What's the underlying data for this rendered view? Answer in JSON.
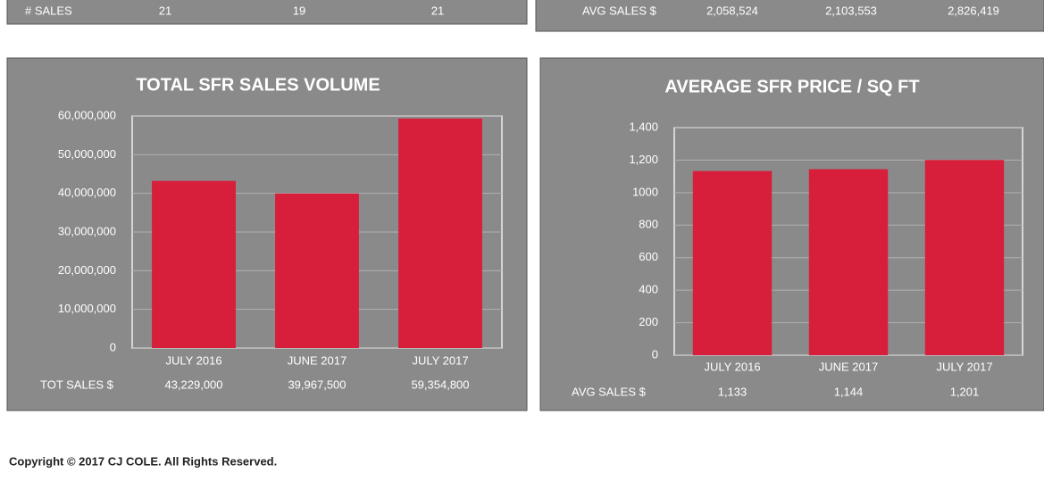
{
  "top_rows": [
    {
      "label": "# SALES",
      "cells": [
        "21",
        "19",
        "21"
      ]
    },
    {
      "label": "AVG SALES $",
      "cells": [
        "2,058,524",
        "2,103,553",
        "2,826,419"
      ]
    }
  ],
  "chart_data": [
    {
      "type": "bar",
      "title": "TOTAL SFR SALES VOLUME",
      "categories": [
        "JULY 2016",
        "JUNE 2017",
        "JULY 2017"
      ],
      "values": [
        43229000,
        39967500,
        59354800
      ],
      "row_label": "TOT SALES $",
      "value_labels": [
        "43,229,000",
        "39,967,500",
        "59,354,800"
      ],
      "color": "#d71e3b",
      "ylim": [
        0,
        60000000
      ],
      "yticks": [
        0,
        {
          "value": 10000000,
          "label": "10,000,000"
        },
        {
          "value": 20000000,
          "label": "20,000,000"
        },
        {
          "value": 30000000,
          "label": "30,000,000"
        },
        {
          "value": 40000000,
          "label": "40,000,000"
        },
        {
          "value": 50000000,
          "label": "50,000,000"
        },
        {
          "value": 60000000,
          "label": "60,000,000"
        }
      ],
      "grid": true
    },
    {
      "type": "bar",
      "title": "AVERAGE SFR PRICE / SQ FT",
      "categories": [
        "JULY 2016",
        "JUNE 2017",
        "JULY 2017"
      ],
      "values": [
        1133,
        1144,
        1201
      ],
      "row_label": "AVG SALES $",
      "value_labels": [
        "1,133",
        "1,144",
        "1,201"
      ],
      "color": "#d71e3b",
      "ylim": [
        0,
        1400
      ],
      "yticks": [
        0,
        200,
        400,
        600,
        800,
        1000,
        {
          "value": 1200,
          "label": "1,200"
        },
        {
          "value": 1400,
          "label": "1,400"
        }
      ],
      "grid": true
    }
  ],
  "copyright": "Copyright © 2017 CJ COLE. All Rights Reserved."
}
